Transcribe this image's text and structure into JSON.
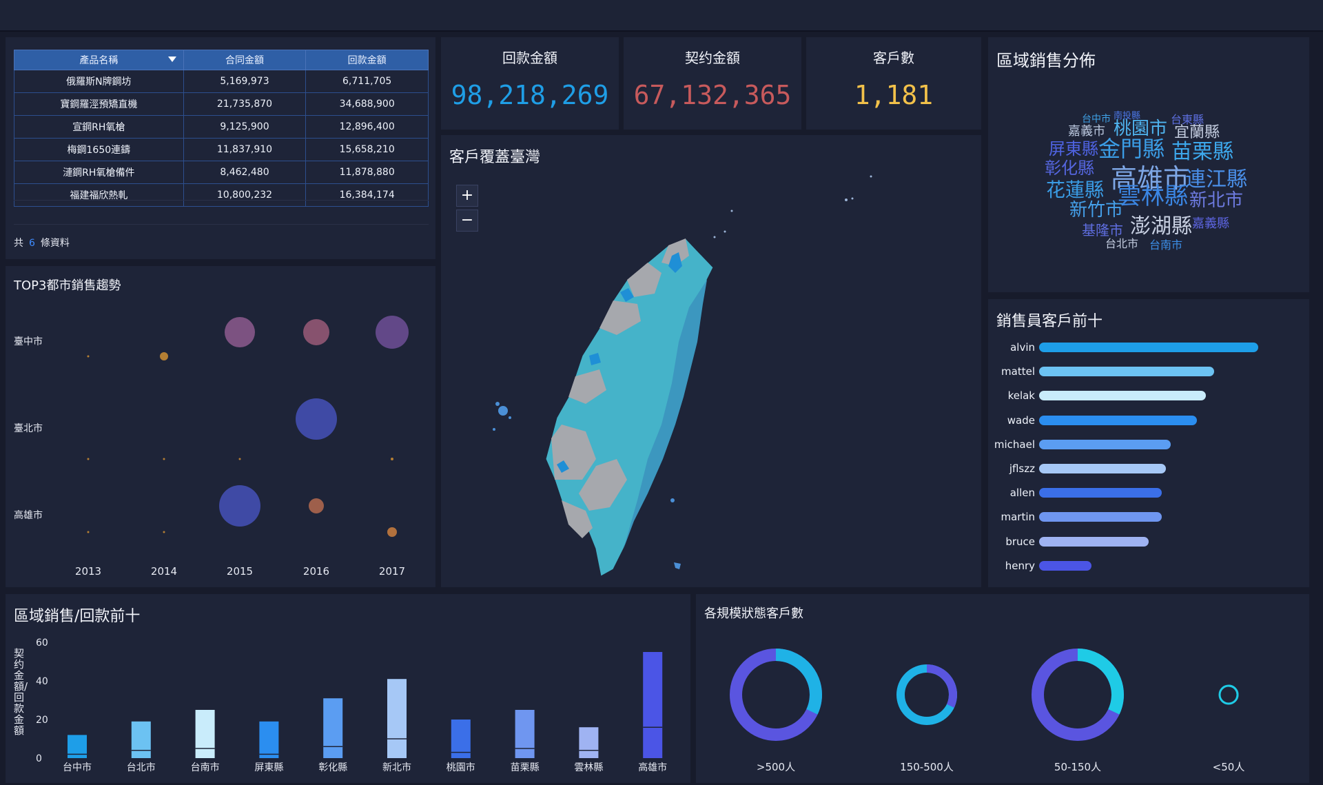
{
  "table": {
    "headers": [
      "產品名稱",
      "合同金額",
      "回款金額"
    ],
    "rows": [
      [
        "俄羅斯N牌鋼坊",
        "5,169,973",
        "6,711,705"
      ],
      [
        "寶鋼羅涇預矯直機",
        "21,735,870",
        "34,688,900"
      ],
      [
        "宣鋼RH氧槍",
        "9,125,900",
        "12,896,400"
      ],
      [
        "梅鋼1650連鑄",
        "11,837,910",
        "15,658,210"
      ],
      [
        "漣鋼RH氧槍備件",
        "8,462,480",
        "11,878,880"
      ],
      [
        "福建福欣熱軋",
        "10,800,232",
        "16,384,174"
      ]
    ],
    "footer_prefix": "共",
    "footer_count": "6",
    "footer_suffix": "條資料"
  },
  "kpis": [
    {
      "label": "回款金額",
      "value": "98,218,269",
      "color": "#1f9ee6"
    },
    {
      "label": "契约金額",
      "value": "67,132,365",
      "color": "#c75a5c"
    },
    {
      "label": "客戶數",
      "value": "1,181",
      "color": "#f2c14a"
    }
  ],
  "map": {
    "title": "客戶覆蓋臺灣",
    "zoom_in": "+",
    "zoom_out": "−"
  },
  "wordcloud": {
    "title": "區域銷售分佈",
    "words": [
      {
        "text": "台中市",
        "color": "#3fa2e8"
      },
      {
        "text": "南投縣",
        "color": "#4c78e8"
      },
      {
        "text": "台東縣",
        "color": "#5d6fe0"
      },
      {
        "text": "嘉義市",
        "color": "#b9c6dd"
      },
      {
        "text": "桃園市",
        "color": "#4fb5f0"
      },
      {
        "text": "宜蘭縣",
        "color": "#c4cde0"
      },
      {
        "text": "屏東縣",
        "color": "#4f63e2"
      },
      {
        "text": "金門縣",
        "color": "#3b9de6"
      },
      {
        "text": "苗栗縣",
        "color": "#3da8ec"
      },
      {
        "text": "彰化縣",
        "color": "#5566df"
      },
      {
        "text": "高雄市",
        "color": "#7ea7e6"
      },
      {
        "text": "連江縣",
        "color": "#4a8fe8"
      },
      {
        "text": "花蓮縣",
        "color": "#3a9ce5"
      },
      {
        "text": "雲林縣",
        "color": "#3b86e3"
      },
      {
        "text": "新竹市",
        "color": "#45a0ea"
      },
      {
        "text": "新北市",
        "color": "#6d7be0"
      },
      {
        "text": "基隆市",
        "color": "#5f6ee0"
      },
      {
        "text": "澎湖縣",
        "color": "#c8d0e2"
      },
      {
        "text": "嘉義縣",
        "color": "#5c64df"
      },
      {
        "text": "台北市",
        "color": "#c4cde0"
      },
      {
        "text": "台南市",
        "color": "#3c8fe8"
      }
    ]
  },
  "salespeople": {
    "title": "銷售員客戶前十",
    "items": [
      {
        "name": "alvin",
        "value": 1.0,
        "color": "#1e9ee8"
      },
      {
        "name": "mattel",
        "value": 0.8,
        "color": "#6cc2f2"
      },
      {
        "name": "kelak",
        "value": 0.76,
        "color": "#c9ecfb"
      },
      {
        "name": "wade",
        "value": 0.72,
        "color": "#2b8ef0"
      },
      {
        "name": "michael",
        "value": 0.6,
        "color": "#5b9df2"
      },
      {
        "name": "jflszz",
        "value": 0.58,
        "color": "#a6c8f6"
      },
      {
        "name": "allen",
        "value": 0.56,
        "color": "#3b6fe8"
      },
      {
        "name": "martin",
        "value": 0.56,
        "color": "#6f96f0"
      },
      {
        "name": "bruce",
        "value": 0.5,
        "color": "#9fb3f2"
      },
      {
        "name": "henry",
        "value": 0.24,
        "color": "#4b55e6"
      }
    ]
  },
  "charts": {
    "bubble_title": "TOP3都市銷售趨勢",
    "bar_title": "區域銷售/回款前十",
    "donut_title": "各規模狀態客戶數"
  },
  "chart_data": [
    {
      "type": "scatter",
      "title": "TOP3都市銷售趨勢",
      "x": [
        "2013",
        "2014",
        "2015",
        "2016",
        "2017"
      ],
      "y_categories": [
        "臺中市",
        "臺北市",
        "高雄市"
      ],
      "series": [
        {
          "name": "臺中市",
          "sizes": [
            1,
            6,
            22,
            19,
            24
          ],
          "colors": [
            "#c58a33",
            "#c58a33",
            "#8d5a8e",
            "#9a5a78",
            "#6e4f97"
          ]
        },
        {
          "name": "臺北市",
          "sizes": [
            1,
            1,
            1,
            30,
            2
          ],
          "colors": [
            "#c58a33",
            "#c58a33",
            "#c58a33",
            "#4551b8",
            "#c58a33"
          ]
        },
        {
          "name": "高雄市",
          "sizes": [
            1,
            1,
            30,
            11,
            7
          ],
          "colors": [
            "#c58a33",
            "#c58a33",
            "#4551b8",
            "#b56a4f",
            "#c27a3e"
          ]
        }
      ]
    },
    {
      "type": "bar",
      "title": "區域銷售/回款前十",
      "ylabel": "契约金額/回款金額",
      "ylim": [
        0,
        60
      ],
      "yticks": [
        0,
        20,
        40,
        60
      ],
      "categories": [
        "台中市",
        "台北市",
        "台南市",
        "屏東縣",
        "彰化縣",
        "新北市",
        "桃園市",
        "苗栗縣",
        "雲林縣",
        "高雄市"
      ],
      "series": [
        {
          "name": "回款金額",
          "values": [
            12,
            19,
            25,
            19,
            31,
            41,
            20,
            25,
            16,
            55
          ]
        },
        {
          "name": "契约金額",
          "values": [
            2,
            4,
            5,
            2,
            6,
            10,
            3,
            5,
            4,
            16
          ]
        }
      ],
      "colors": [
        "#1e9ee8",
        "#6cc2f2",
        "#c9ecfb",
        "#2b8ef0",
        "#5b9df2",
        "#a6c8f6",
        "#3b6fe8",
        "#6f96f0",
        "#9fb3f2",
        "#4b55e6"
      ]
    },
    {
      "type": "pie",
      "title": "各規模狀態客戶數",
      "categories": [
        ">500人",
        "150-500人",
        "50-150人",
        "<50人"
      ],
      "values": [
        1,
        1,
        1,
        1
      ]
    }
  ]
}
